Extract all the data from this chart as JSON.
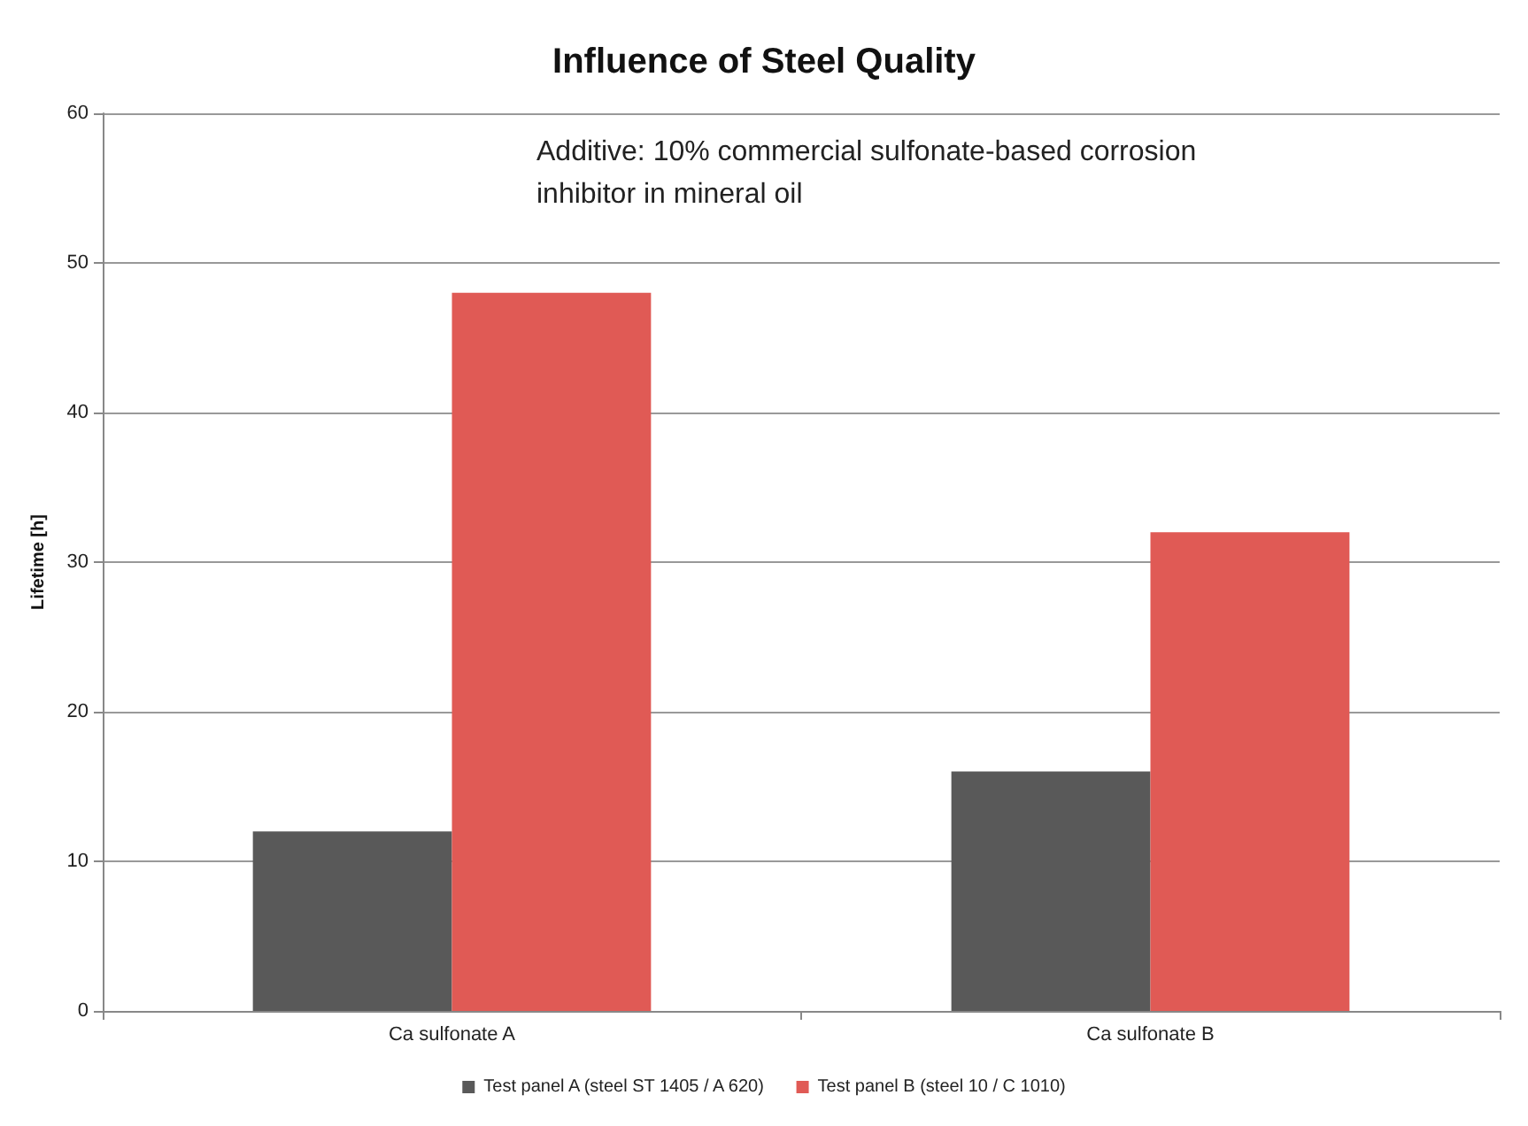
{
  "chart_data": {
    "type": "bar",
    "title": "Influence of Steel Quality",
    "ylabel": "Lifetime [h]",
    "categories": [
      "Ca sulfonate A",
      "Ca sulfonate B"
    ],
    "series": [
      {
        "name": "Test panel A (steel ST 1405 / A 620)",
        "color": "#595959",
        "values": [
          12,
          16
        ]
      },
      {
        "name": "Test panel B (steel 10 / C 1010)",
        "color": "#e05a55",
        "values": [
          48,
          32
        ]
      }
    ],
    "ylim": [
      0,
      60
    ],
    "yticks": [
      0,
      10,
      20,
      30,
      40,
      50,
      60
    ],
    "grid": "y",
    "legend": "bottom",
    "annotations": [
      "Additive: 10% commercial sulfonate-based corrosion inhibitor in mineral oil"
    ]
  }
}
